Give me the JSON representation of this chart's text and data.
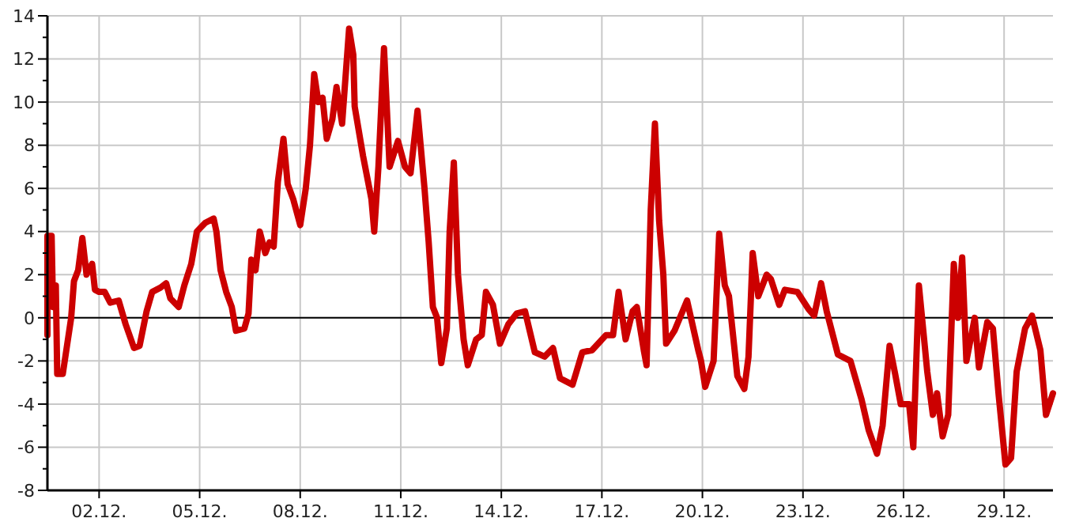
{
  "chart_data": {
    "type": "line",
    "x": [
      "--11-30T11:00",
      "--11-30T11:00",
      "--11-30T14:00",
      "--11-30T15:00",
      "--11-30T17:00",
      "--11-30T18:00",
      "--11-30T22:00",
      "--12-01T01:00",
      "--12-01T04:00",
      "--12-01T06:00",
      "--12-01T09:00",
      "--12-01T12:00",
      "--12-01T15:00",
      "--12-01T19:00",
      "--12-01T21:00",
      "--12-02T00:00",
      "--12-02T04:00",
      "--12-02T08:00",
      "--12-02T14:00",
      "--12-02T19:00",
      "--12-03T01:00",
      "--12-03T05:00",
      "--12-03T10:00",
      "--12-03T14:00",
      "--12-03T20:00",
      "--12-04T00:00",
      "--12-04T03:00",
      "--12-04T09:00",
      "--12-04T13:00",
      "--12-04T18:00",
      "--12-04T22:00",
      "--12-05T04:00",
      "--12-05T10:00",
      "--12-05T12:00",
      "--12-05T15:00",
      "--12-05T19:00",
      "--12-05T23:00",
      "--12-06T02:00",
      "--12-06T08:00",
      "--12-06T11:00",
      "--12-06T13:00",
      "--12-06T16:00",
      "--12-06T19:00",
      "--12-06T23:00",
      "--12-07T02:00",
      "--12-07T05:00",
      "--12-07T08:00",
      "--12-07T12:00",
      "--12-07T15:00",
      "--12-07T19:00",
      "--12-08T00:00",
      "--12-08T04:00",
      "--12-08T07:00",
      "--12-08T10:00",
      "--12-08T13:00",
      "--12-08T16:00",
      "--12-08T19:00",
      "--12-08T23:00",
      "--12-09T02:00",
      "--12-09T06:00",
      "--12-09T11:00",
      "--12-09T14:00",
      "--12-09T15:00",
      "--12-09T21:00",
      "--12-10T03:00",
      "--12-10T05:00",
      "--12-10T08:00",
      "--12-10T12:00",
      "--12-10T16:00",
      "--12-10T22:00",
      "--12-11T03:00",
      "--12-11T07:00",
      "--12-11T12:00",
      "--12-11T17:00",
      "--12-11T20:00",
      "--12-11T23:00",
      "--12-12T02:00",
      "--12-12T05:00",
      "--12-12T09:00",
      "--12-12T11:00",
      "--12-12T14:00",
      "--12-12T17:00",
      "--12-12T21:00",
      "--12-13T00:00",
      "--12-13T06:00",
      "--12-13T10:00",
      "--12-13T13:00",
      "--12-13T18:00",
      "--12-13T23:00",
      "--12-14T05:00",
      "--12-14T11:00",
      "--12-14T17:00",
      "--12-15T00:00",
      "--12-15T07:00",
      "--12-15T13:00",
      "--12-15T18:00",
      "--12-16T03:00",
      "--12-16T10:00",
      "--12-16T17:00",
      "--12-17T03:00",
      "--12-17T08:00",
      "--12-17T12:00",
      "--12-17T17:00",
      "--12-17T22:00",
      "--12-18T01:00",
      "--12-18T06:00",
      "--12-18T08:00",
      "--12-18T11:00",
      "--12-18T14:00",
      "--12-18T17:00",
      "--12-18T20:00",
      "--12-18T22:00",
      "--12-19T04:00",
      "--12-19T13:00",
      "--12-19T21:00",
      "--12-19T23:00",
      "--12-20T02:00",
      "--12-20T08:00",
      "--12-20T12:00",
      "--12-20T16:00",
      "--12-20T19:00",
      "--12-21T01:00",
      "--12-21T06:00",
      "--12-21T09:00",
      "--12-21T12:00",
      "--12-21T16:00",
      "--12-21T22:00",
      "--12-22T01:00",
      "--12-22T07:00",
      "--12-22T11:00",
      "--12-22T20:00",
      "--12-23T04:00",
      "--12-23T08:00",
      "--12-23T13:00",
      "--12-23T17:00",
      "--12-24T01:00",
      "--12-24T10:00",
      "--12-24T18:00",
      "--12-24T23:00",
      "--12-25T05:00",
      "--12-25T09:00",
      "--12-25T14:00",
      "--12-25T18:00",
      "--12-25T22:00",
      "--12-26T04:00",
      "--12-26T07:00",
      "--12-26T11:00",
      "--12-26T17:00",
      "--12-26T21:00",
      "--12-27T00:00",
      "--12-27T04:00",
      "--12-27T08:00",
      "--12-27T12:00",
      "--12-27T15:00",
      "--12-27T18:00",
      "--12-27T21:00",
      "--12-28T03:00",
      "--12-28T06:00",
      "--12-28T12:00",
      "--12-28T16:00",
      "--12-28T20:00",
      "--12-29T01:00",
      "--12-29T05:00",
      "--12-29T09:00",
      "--12-29T15:00",
      "--12-29T20:00",
      "--12-30T02:00",
      "--12-30T06:00",
      "--12-30T11:00"
    ],
    "series": [
      {
        "color": "#cc0000",
        "values": [
          -0.8,
          3.8,
          3.8,
          0.5,
          1.5,
          -2.6,
          -2.6,
          -1.3,
          0,
          1.7,
          2.2,
          3.7,
          2.0,
          2.5,
          1.3,
          1.2,
          1.2,
          0.7,
          0.8,
          -0.3,
          -1.4,
          -1.3,
          0.3,
          1.2,
          1.4,
          1.6,
          0.9,
          0.5,
          1.5,
          2.5,
          4.0,
          4.4,
          4.6,
          4.0,
          2.2,
          1.2,
          0.5,
          -0.6,
          -0.5,
          0.2,
          2.7,
          2.2,
          4.0,
          3.0,
          3.5,
          3.3,
          6.3,
          8.3,
          6.2,
          5.5,
          4.3,
          6.0,
          8.0,
          11.3,
          10.0,
          10.2,
          8.3,
          9.2,
          10.7,
          9.0,
          13.4,
          12.2,
          9.8,
          7.5,
          5.5,
          4.0,
          7.0,
          12.5,
          7.0,
          8.2,
          7.0,
          6.7,
          9.6,
          6.0,
          3.5,
          0.5,
          0,
          -2.1,
          -0.5,
          4.0,
          7.2,
          2.0,
          -1.0,
          -2.2,
          -1.0,
          -0.8,
          1.2,
          0.6,
          -1.2,
          -0.3,
          0.2,
          0.3,
          -1.6,
          -1.8,
          -1.4,
          -2.8,
          -3.1,
          -1.6,
          -1.5,
          -0.8,
          -0.8,
          1.2,
          -1.0,
          0.3,
          0.5,
          -1.5,
          -2.2,
          5.0,
          9.0,
          4.5,
          2.0,
          -1.2,
          -0.6,
          0.8,
          -1.5,
          -2.0,
          -3.2,
          -2.0,
          3.9,
          1.5,
          1.0,
          -2.7,
          -3.3,
          -1.8,
          3.0,
          1.0,
          2.0,
          1.8,
          0.6,
          1.3,
          1.2,
          0.4,
          0.1,
          1.6,
          0.3,
          -1.7,
          -2.0,
          -3.8,
          -5.2,
          -6.3,
          -5.0,
          -1.3,
          -2.6,
          -4.0,
          -4.0,
          -6.0,
          1.5,
          -2.5,
          -4.5,
          -3.5,
          -5.5,
          -4.5,
          2.5,
          0.0,
          2.8,
          -2.0,
          0.0,
          -2.3,
          -0.2,
          -0.5,
          -3.5,
          -6.8,
          -6.5,
          -2.5,
          -0.5,
          0.1,
          -1.5,
          -4.5,
          -3.5
        ]
      }
    ],
    "xlim": [
      "--11-30T11:00",
      "--12-30T11:00"
    ],
    "xticks": [
      {
        "value": "--12-02",
        "label": "02.12."
      },
      {
        "value": "--12-05",
        "label": "05.12."
      },
      {
        "value": "--12-08",
        "label": "08.12."
      },
      {
        "value": "--12-11",
        "label": "11.12."
      },
      {
        "value": "--12-14",
        "label": "14.12."
      },
      {
        "value": "--12-17",
        "label": "17.12."
      },
      {
        "value": "--12-20",
        "label": "20.12."
      },
      {
        "value": "--12-23",
        "label": "23.12."
      },
      {
        "value": "--12-26",
        "label": "26.12."
      },
      {
        "value": "--12-29",
        "label": "29.12."
      }
    ],
    "ylim": [
      -8,
      14
    ],
    "yticks": [
      -8,
      {
        "value": -7,
        "label": null
      },
      -6,
      {
        "value": -5,
        "label": null
      },
      -4,
      {
        "value": -3,
        "label": null
      },
      -2,
      {
        "value": -1,
        "label": null
      },
      0,
      {
        "value": 1,
        "label": null
      },
      2,
      {
        "value": 3,
        "label": null
      },
      4,
      {
        "value": 5,
        "label": null
      },
      6,
      {
        "value": 7,
        "label": null
      },
      8,
      {
        "value": 9,
        "label": null
      },
      10,
      {
        "value": 11,
        "label": null
      },
      12,
      {
        "value": 13,
        "label": null
      },
      14
    ],
    "ref_lines": [
      {
        "axis": "y",
        "value": 0,
        "color": "#000000"
      }
    ],
    "grid": true,
    "marker": "none",
    "line_style": "solid"
  }
}
